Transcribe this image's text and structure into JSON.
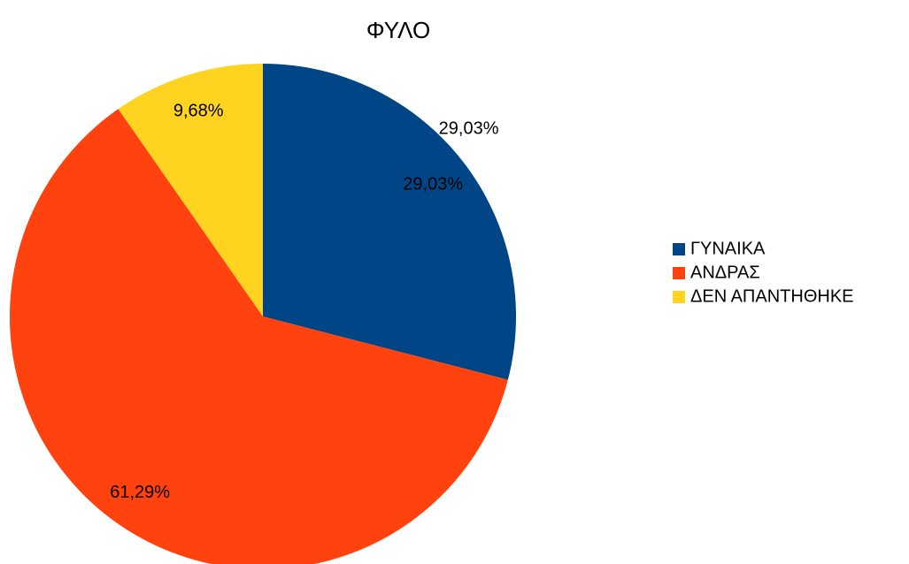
{
  "chart_data": {
    "type": "pie",
    "title": "ΦΥΛΟ",
    "categories": [
      "ΓΥΝΑΙΚΑ",
      "ΑΝΔΡΑΣ",
      "ΔΕΝ ΑΠΑΝΤΗΘΗΚΕ"
    ],
    "values": [
      29.03,
      61.29,
      9.68
    ],
    "value_labels": [
      "29,03%",
      "61,29%",
      "9,68%"
    ],
    "colors": [
      "#004586",
      "#ff420e",
      "#ffd320"
    ],
    "legend": "right"
  }
}
